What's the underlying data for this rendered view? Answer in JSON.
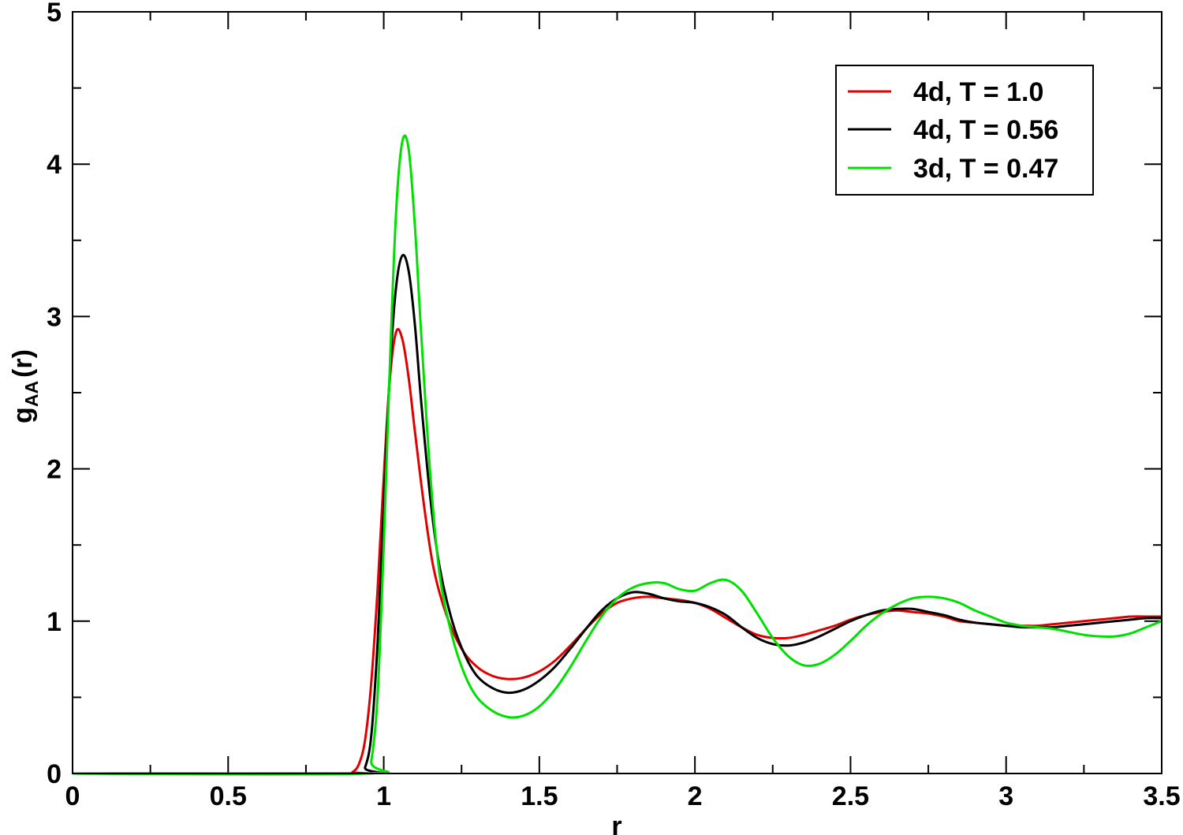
{
  "chart_data": {
    "type": "line",
    "xlabel": "r",
    "ylabel": {
      "main": "g",
      "sub": "AA",
      "suffix": "(r)"
    },
    "xlim": [
      0,
      3.5
    ],
    "ylim": [
      0,
      5
    ],
    "x_ticks": [
      0,
      0.5,
      1,
      1.5,
      2,
      2.5,
      3,
      3.5
    ],
    "x_tick_labels": [
      "0",
      "0.5",
      "1",
      "1.5",
      "2",
      "2.5",
      "3",
      "3.5"
    ],
    "y_ticks": [
      0,
      1,
      2,
      3,
      4,
      5
    ],
    "y_tick_labels": [
      "0",
      "1",
      "2",
      "3",
      "4",
      "5"
    ],
    "x_minor_ticks": [
      0.25,
      0.75,
      1.25,
      1.75,
      2.25,
      2.75,
      3.25
    ],
    "y_minor_ticks": [
      0.5,
      1.5,
      2.5,
      3.5,
      4.5
    ],
    "grid": false,
    "legend_position": "top-right",
    "series": [
      {
        "name": "4d, T = 1.0",
        "color": "#e00000",
        "points": [
          [
            0,
            0
          ],
          [
            0.88,
            0
          ],
          [
            0.9,
            0.01
          ],
          [
            0.92,
            0.06
          ],
          [
            0.94,
            0.22
          ],
          [
            0.96,
            0.6
          ],
          [
            0.98,
            1.2
          ],
          [
            1.0,
            1.95
          ],
          [
            1.02,
            2.6
          ],
          [
            1.04,
            2.9
          ],
          [
            1.06,
            2.85
          ],
          [
            1.08,
            2.6
          ],
          [
            1.1,
            2.25
          ],
          [
            1.13,
            1.75
          ],
          [
            1.16,
            1.35
          ],
          [
            1.2,
            1.05
          ],
          [
            1.25,
            0.82
          ],
          [
            1.3,
            0.7
          ],
          [
            1.35,
            0.64
          ],
          [
            1.4,
            0.62
          ],
          [
            1.45,
            0.63
          ],
          [
            1.5,
            0.67
          ],
          [
            1.55,
            0.74
          ],
          [
            1.6,
            0.84
          ],
          [
            1.65,
            0.95
          ],
          [
            1.7,
            1.05
          ],
          [
            1.75,
            1.12
          ],
          [
            1.8,
            1.15
          ],
          [
            1.85,
            1.16
          ],
          [
            1.9,
            1.15
          ],
          [
            1.95,
            1.14
          ],
          [
            2.0,
            1.12
          ],
          [
            2.05,
            1.08
          ],
          [
            2.1,
            1.02
          ],
          [
            2.15,
            0.96
          ],
          [
            2.2,
            0.91
          ],
          [
            2.25,
            0.89
          ],
          [
            2.3,
            0.89
          ],
          [
            2.35,
            0.91
          ],
          [
            2.4,
            0.94
          ],
          [
            2.45,
            0.97
          ],
          [
            2.5,
            1.01
          ],
          [
            2.55,
            1.04
          ],
          [
            2.6,
            1.06
          ],
          [
            2.65,
            1.07
          ],
          [
            2.7,
            1.06
          ],
          [
            2.75,
            1.05
          ],
          [
            2.8,
            1.03
          ],
          [
            2.85,
            1.0
          ],
          [
            2.9,
            0.99
          ],
          [
            2.95,
            0.98
          ],
          [
            3.0,
            0.97
          ],
          [
            3.05,
            0.97
          ],
          [
            3.1,
            0.97
          ],
          [
            3.15,
            0.98
          ],
          [
            3.2,
            0.99
          ],
          [
            3.25,
            1.0
          ],
          [
            3.3,
            1.01
          ],
          [
            3.35,
            1.02
          ],
          [
            3.4,
            1.03
          ],
          [
            3.45,
            1.03
          ],
          [
            3.5,
            1.03
          ]
        ]
      },
      {
        "name": "4d, T = 0.56",
        "color": "#000000",
        "points": [
          [
            0,
            0
          ],
          [
            0.92,
            0
          ],
          [
            0.94,
            0.04
          ],
          [
            0.96,
            0.25
          ],
          [
            0.98,
            0.85
          ],
          [
            1.0,
            1.75
          ],
          [
            1.02,
            2.65
          ],
          [
            1.04,
            3.2
          ],
          [
            1.06,
            3.4
          ],
          [
            1.08,
            3.3
          ],
          [
            1.1,
            2.95
          ],
          [
            1.12,
            2.45
          ],
          [
            1.15,
            1.8
          ],
          [
            1.18,
            1.35
          ],
          [
            1.22,
            1.0
          ],
          [
            1.26,
            0.78
          ],
          [
            1.3,
            0.64
          ],
          [
            1.35,
            0.56
          ],
          [
            1.4,
            0.53
          ],
          [
            1.45,
            0.55
          ],
          [
            1.5,
            0.61
          ],
          [
            1.55,
            0.7
          ],
          [
            1.6,
            0.82
          ],
          [
            1.65,
            0.95
          ],
          [
            1.7,
            1.07
          ],
          [
            1.75,
            1.15
          ],
          [
            1.8,
            1.19
          ],
          [
            1.85,
            1.18
          ],
          [
            1.9,
            1.15
          ],
          [
            1.95,
            1.13
          ],
          [
            2.0,
            1.12
          ],
          [
            2.05,
            1.09
          ],
          [
            2.1,
            1.04
          ],
          [
            2.15,
            0.96
          ],
          [
            2.2,
            0.89
          ],
          [
            2.25,
            0.85
          ],
          [
            2.3,
            0.84
          ],
          [
            2.35,
            0.86
          ],
          [
            2.4,
            0.9
          ],
          [
            2.45,
            0.95
          ],
          [
            2.5,
            1.0
          ],
          [
            2.55,
            1.04
          ],
          [
            2.6,
            1.07
          ],
          [
            2.65,
            1.08
          ],
          [
            2.7,
            1.08
          ],
          [
            2.75,
            1.06
          ],
          [
            2.8,
            1.04
          ],
          [
            2.85,
            1.01
          ],
          [
            2.9,
            0.99
          ],
          [
            2.95,
            0.98
          ],
          [
            3.0,
            0.97
          ],
          [
            3.05,
            0.96
          ],
          [
            3.1,
            0.96
          ],
          [
            3.15,
            0.96
          ],
          [
            3.2,
            0.97
          ],
          [
            3.25,
            0.98
          ],
          [
            3.3,
            0.99
          ],
          [
            3.35,
            1.0
          ],
          [
            3.4,
            1.01
          ],
          [
            3.45,
            1.02
          ],
          [
            3.5,
            1.02
          ]
        ]
      },
      {
        "name": "3d, T = 0.47",
        "color": "#00e000",
        "points": [
          [
            0,
            0
          ],
          [
            0.94,
            0
          ],
          [
            0.96,
            0.08
          ],
          [
            0.98,
            0.5
          ],
          [
            1.0,
            1.5
          ],
          [
            1.02,
            2.7
          ],
          [
            1.04,
            3.7
          ],
          [
            1.06,
            4.15
          ],
          [
            1.08,
            4.1
          ],
          [
            1.1,
            3.6
          ],
          [
            1.12,
            2.9
          ],
          [
            1.15,
            1.95
          ],
          [
            1.18,
            1.3
          ],
          [
            1.22,
            0.9
          ],
          [
            1.26,
            0.65
          ],
          [
            1.3,
            0.5
          ],
          [
            1.35,
            0.41
          ],
          [
            1.4,
            0.37
          ],
          [
            1.45,
            0.38
          ],
          [
            1.5,
            0.44
          ],
          [
            1.55,
            0.55
          ],
          [
            1.6,
            0.7
          ],
          [
            1.65,
            0.87
          ],
          [
            1.7,
            1.03
          ],
          [
            1.75,
            1.15
          ],
          [
            1.8,
            1.22
          ],
          [
            1.85,
            1.25
          ],
          [
            1.9,
            1.25
          ],
          [
            1.95,
            1.21
          ],
          [
            2.0,
            1.2
          ],
          [
            2.05,
            1.25
          ],
          [
            2.1,
            1.27
          ],
          [
            2.15,
            1.2
          ],
          [
            2.2,
            1.05
          ],
          [
            2.25,
            0.89
          ],
          [
            2.3,
            0.77
          ],
          [
            2.35,
            0.71
          ],
          [
            2.4,
            0.72
          ],
          [
            2.45,
            0.78
          ],
          [
            2.5,
            0.87
          ],
          [
            2.55,
            0.97
          ],
          [
            2.6,
            1.05
          ],
          [
            2.65,
            1.11
          ],
          [
            2.7,
            1.15
          ],
          [
            2.75,
            1.16
          ],
          [
            2.8,
            1.15
          ],
          [
            2.85,
            1.12
          ],
          [
            2.9,
            1.07
          ],
          [
            2.95,
            1.03
          ],
          [
            3.0,
            0.99
          ],
          [
            3.05,
            0.97
          ],
          [
            3.1,
            0.96
          ],
          [
            3.15,
            0.95
          ],
          [
            3.2,
            0.93
          ],
          [
            3.25,
            0.91
          ],
          [
            3.3,
            0.9
          ],
          [
            3.35,
            0.9
          ],
          [
            3.4,
            0.92
          ],
          [
            3.45,
            0.96
          ],
          [
            3.5,
            1.0
          ]
        ]
      }
    ]
  }
}
